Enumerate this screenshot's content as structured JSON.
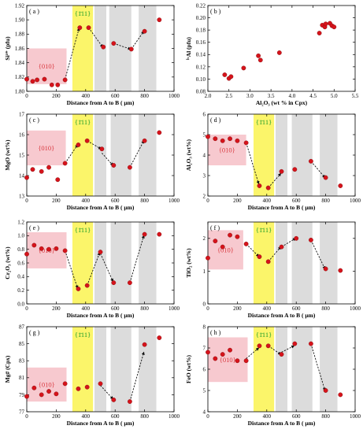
{
  "figure": {
    "colors": {
      "facet_010_fill": "#f7c9cf",
      "facet_010_text": "#d9383f",
      "facet_111_fill": "#fbf56a",
      "facet_111_text": "#1a9c2a",
      "band_grey": "#dcdcdc",
      "point_fill": "#d6131b",
      "point_stroke": "#7a0a0a"
    }
  },
  "chart_data": [
    {
      "id": "a",
      "type": "scatter",
      "panel_label": "( a )",
      "ylabel": "Si⁴⁺ (pfu)",
      "xlabel": "Distance from A to B ( μm)",
      "xlim": [
        0,
        1000
      ],
      "ylim": [
        1.8,
        1.92
      ],
      "xticks": [
        "0",
        "200",
        "400",
        "600",
        "800",
        "1000"
      ],
      "yticks": [
        "1.80",
        "1.82",
        "1.84",
        "1.86",
        "1.88",
        "1.90",
        "1.92"
      ],
      "x": [
        0,
        40,
        70,
        120,
        170,
        210,
        260,
        360,
        420,
        520,
        590,
        710,
        800,
        900
      ],
      "y": [
        1.817,
        1.814,
        1.816,
        1.817,
        1.809,
        1.809,
        1.816,
        1.889,
        1.889,
        1.862,
        1.867,
        1.859,
        1.884,
        1.9
      ],
      "zone_010": {
        "label": "{010}",
        "x": [
          0,
          270
        ],
        "y": [
          1.81,
          1.86
        ]
      },
      "zone_111": {
        "label": "{1̄11}",
        "x": [
          310,
          450
        ]
      },
      "grey_bands": [
        [
          460,
          540
        ],
        [
          560,
          710
        ],
        [
          760,
          880
        ]
      ],
      "arrows": [
        [
          260,
          1.817,
          355,
          1.888
        ],
        [
          420,
          1.889,
          515,
          1.862
        ],
        [
          590,
          1.867,
          705,
          1.859
        ],
        [
          710,
          1.859,
          795,
          1.884
        ]
      ]
    },
    {
      "id": "b",
      "type": "scatter",
      "panel_label": "( b )",
      "ylabel": "ⁱᵛAl (pfu)",
      "xlabel": "Al₂O₃ (wt % in Cpx)",
      "xlim": [
        2.0,
        5.5
      ],
      "ylim": [
        0.08,
        0.22
      ],
      "xticks": [
        "2.0",
        "2.5",
        "3.0",
        "3.5",
        "4.0",
        "4.5",
        "5.0",
        "5.5"
      ],
      "yticks": [
        "0.08",
        "0.10",
        "0.12",
        "0.14",
        "0.16",
        "0.18",
        "0.20",
        "0.22"
      ],
      "x": [
        2.4,
        2.5,
        2.55,
        2.85,
        3.2,
        3.25,
        3.7,
        4.65,
        4.72,
        4.78,
        4.8,
        4.9,
        4.95,
        5.0
      ],
      "y": [
        0.107,
        0.101,
        0.104,
        0.118,
        0.138,
        0.131,
        0.143,
        0.175,
        0.188,
        0.185,
        0.19,
        0.191,
        0.187,
        0.185
      ]
    },
    {
      "id": "c",
      "type": "scatter",
      "panel_label": "( c )",
      "ylabel": "MgO (wt%)",
      "xlabel": "Distance from A to B ( μm)",
      "xlim": [
        0,
        1000
      ],
      "ylim": [
        13,
        17
      ],
      "xticks": [
        "0",
        "200",
        "400",
        "600",
        "800",
        "1000"
      ],
      "yticks": [
        "13",
        "14",
        "15",
        "16",
        "17"
      ],
      "x": [
        0,
        40,
        100,
        150,
        210,
        260,
        350,
        410,
        510,
        590,
        700,
        800,
        900
      ],
      "y": [
        13.9,
        14.3,
        14.2,
        14.4,
        13.8,
        14.6,
        15.5,
        15.7,
        15.3,
        14.5,
        14.4,
        15.7,
        16.1
      ],
      "zone_010": {
        "label": "{010}",
        "x": [
          0,
          265
        ],
        "y": [
          14.5,
          16.2
        ]
      },
      "zone_111": {
        "label": "{1̄11}",
        "x": [
          310,
          450
        ]
      },
      "grey_bands": [
        [
          460,
          540
        ],
        [
          570,
          710
        ],
        [
          760,
          880
        ]
      ],
      "arrows": [
        [
          260,
          14.6,
          345,
          15.5
        ],
        [
          410,
          15.7,
          505,
          15.3
        ],
        [
          510,
          15.1,
          585,
          14.5
        ],
        [
          700,
          14.4,
          795,
          15.7
        ]
      ]
    },
    {
      "id": "d",
      "type": "scatter",
      "panel_label": "( d )",
      "ylabel": "Al₂O₃ (wt%)",
      "xlabel": "Distance from A to B ( μm)",
      "xlim": [
        0,
        1000
      ],
      "ylim": [
        2,
        6
      ],
      "xticks": [
        "0",
        "200",
        "400",
        "600",
        "800",
        "1000"
      ],
      "yticks": [
        "2",
        "3",
        "4",
        "5",
        "6"
      ],
      "x": [
        0,
        50,
        100,
        150,
        200,
        260,
        350,
        410,
        500,
        590,
        700,
        800,
        900
      ],
      "y": [
        4.9,
        4.8,
        4.7,
        4.8,
        4.7,
        4.6,
        2.5,
        2.4,
        3.2,
        3.3,
        3.7,
        2.9,
        2.5
      ],
      "zone_010": {
        "label": "{010}",
        "x": [
          0,
          260
        ],
        "y": [
          3.5,
          5.0
        ]
      },
      "zone_111": {
        "label": "{1̄11}",
        "x": [
          310,
          450
        ]
      },
      "grey_bands": [
        [
          460,
          540
        ],
        [
          570,
          710
        ],
        [
          760,
          880
        ]
      ],
      "arrows": [
        [
          260,
          4.6,
          345,
          2.6
        ],
        [
          410,
          2.4,
          495,
          3.1
        ],
        [
          700,
          3.7,
          795,
          2.9
        ]
      ]
    },
    {
      "id": "e",
      "type": "scatter",
      "panel_label": "( e )",
      "ylabel": "Cr₂O₃ (wt%)",
      "xlabel": "Distance from A to B ( μm)",
      "xlim": [
        0,
        1000
      ],
      "ylim": [
        0,
        1.2
      ],
      "xticks": [
        "0",
        "200",
        "400",
        "600",
        "800",
        "1000"
      ],
      "yticks": [
        "0.0",
        "0.2",
        "0.4",
        "0.6",
        "0.8",
        "1.0",
        "1.2"
      ],
      "x": [
        0,
        50,
        100,
        150,
        200,
        260,
        350,
        410,
        500,
        590,
        700,
        800,
        900
      ],
      "y": [
        0.73,
        0.86,
        0.81,
        0.8,
        0.81,
        0.78,
        0.22,
        0.27,
        0.76,
        0.31,
        0.31,
        1.02,
        1.02
      ],
      "zone_010": {
        "label": "{010}",
        "x": [
          0,
          270
        ],
        "y": [
          0.52,
          1.05
        ]
      },
      "zone_111": {
        "label": "{1̄11}",
        "x": [
          310,
          450
        ]
      },
      "grey_bands": [
        [
          460,
          540
        ],
        [
          570,
          710
        ],
        [
          760,
          880
        ]
      ],
      "arrows": [
        [
          260,
          0.78,
          345,
          0.23
        ],
        [
          410,
          0.27,
          495,
          0.75
        ],
        [
          500,
          0.74,
          585,
          0.33
        ],
        [
          700,
          0.31,
          795,
          1.0
        ]
      ]
    },
    {
      "id": "f",
      "type": "scatter",
      "panel_label": "( f )",
      "ylabel": "TiO₂ (wt%)",
      "xlabel": "Distance from A to B ( μm)",
      "xlim": [
        0,
        1000
      ],
      "ylim": [
        0,
        2.5
      ],
      "xticks": [
        "0",
        "200",
        "400",
        "600",
        "800",
        "1000"
      ],
      "yticks": [
        "0",
        "1",
        "2"
      ],
      "x": [
        0,
        50,
        100,
        150,
        200,
        260,
        350,
        410,
        500,
        600,
        700,
        800,
        900
      ],
      "y": [
        1.4,
        1.92,
        1.74,
        2.1,
        2.05,
        1.83,
        1.44,
        1.29,
        1.74,
        2.0,
        1.95,
        1.07,
        1.02
      ],
      "zone_010": {
        "label": "{010}",
        "x": [
          0,
          240
        ],
        "y": [
          1.05,
          2.25
        ]
      },
      "zone_111": {
        "label": "{1̄11}",
        "x": [
          310,
          450
        ]
      },
      "grey_bands": [
        [
          460,
          540
        ],
        [
          570,
          710
        ],
        [
          760,
          880
        ]
      ],
      "arrows": [
        [
          260,
          1.83,
          345,
          1.45
        ],
        [
          410,
          1.29,
          495,
          1.74
        ],
        [
          500,
          1.74,
          595,
          2.0
        ],
        [
          700,
          1.95,
          795,
          1.07
        ]
      ]
    },
    {
      "id": "g",
      "type": "scatter",
      "panel_label": "( g )",
      "ylabel": "Mg# (Cpx)",
      "xlabel": "Distance from A to B ( μm)",
      "xlim": [
        0,
        1000
      ],
      "ylim": [
        77,
        87
      ],
      "xticks": [
        "0",
        "200",
        "400",
        "600",
        "800",
        "1000"
      ],
      "yticks": [
        "77",
        "79",
        "81",
        "83",
        "85",
        "87"
      ],
      "x": [
        0,
        50,
        100,
        150,
        200,
        260,
        350,
        410,
        500,
        590,
        700,
        800,
        900
      ],
      "y": [
        78.8,
        79.8,
        79.0,
        79.4,
        79.1,
        80.3,
        79.7,
        79.9,
        80.3,
        78.4,
        78.2,
        84.9,
        85.7
      ],
      "zone_010": {
        "label": "{010}",
        "x": [
          0,
          270
        ],
        "y": [
          78.2,
          82.2
        ]
      },
      "zone_111": {
        "label": "{1̄11}",
        "x": [
          310,
          450
        ]
      },
      "grey_bands": [
        [
          460,
          540
        ],
        [
          570,
          710
        ],
        [
          760,
          880
        ]
      ],
      "arrows": [
        [
          500,
          80.1,
          585,
          78.5
        ],
        [
          700,
          78.2,
          795,
          84.0
        ]
      ]
    },
    {
      "id": "h",
      "type": "scatter",
      "panel_label": "( h )",
      "ylabel": "FeO (wt%)",
      "xlabel": "Distance from A to B ( μm)",
      "xlim": [
        0,
        1000
      ],
      "ylim": [
        4,
        8
      ],
      "xticks": [
        "0",
        "200",
        "400",
        "600",
        "800",
        "1000"
      ],
      "yticks": [
        "4",
        "5",
        "6",
        "7",
        "8"
      ],
      "x": [
        0,
        50,
        100,
        150,
        200,
        260,
        350,
        410,
        500,
        590,
        700,
        800,
        900
      ],
      "y": [
        6.8,
        6.5,
        6.7,
        6.9,
        6.4,
        6.4,
        7.1,
        7.1,
        6.7,
        7.2,
        7.2,
        5.0,
        4.8
      ],
      "zone_010": {
        "label": "{010}",
        "x": [
          0,
          270
        ],
        "y": [
          5.4,
          7.5
        ]
      },
      "zone_111": {
        "label": "{1̄11}",
        "x": [
          310,
          450
        ]
      },
      "grey_bands": [
        [
          460,
          540
        ],
        [
          570,
          710
        ],
        [
          760,
          880
        ]
      ],
      "arrows": [
        [
          260,
          6.5,
          345,
          7.0
        ],
        [
          410,
          7.1,
          495,
          6.7
        ],
        [
          500,
          6.8,
          585,
          7.1
        ],
        [
          700,
          7.2,
          795,
          5.0
        ]
      ]
    }
  ]
}
